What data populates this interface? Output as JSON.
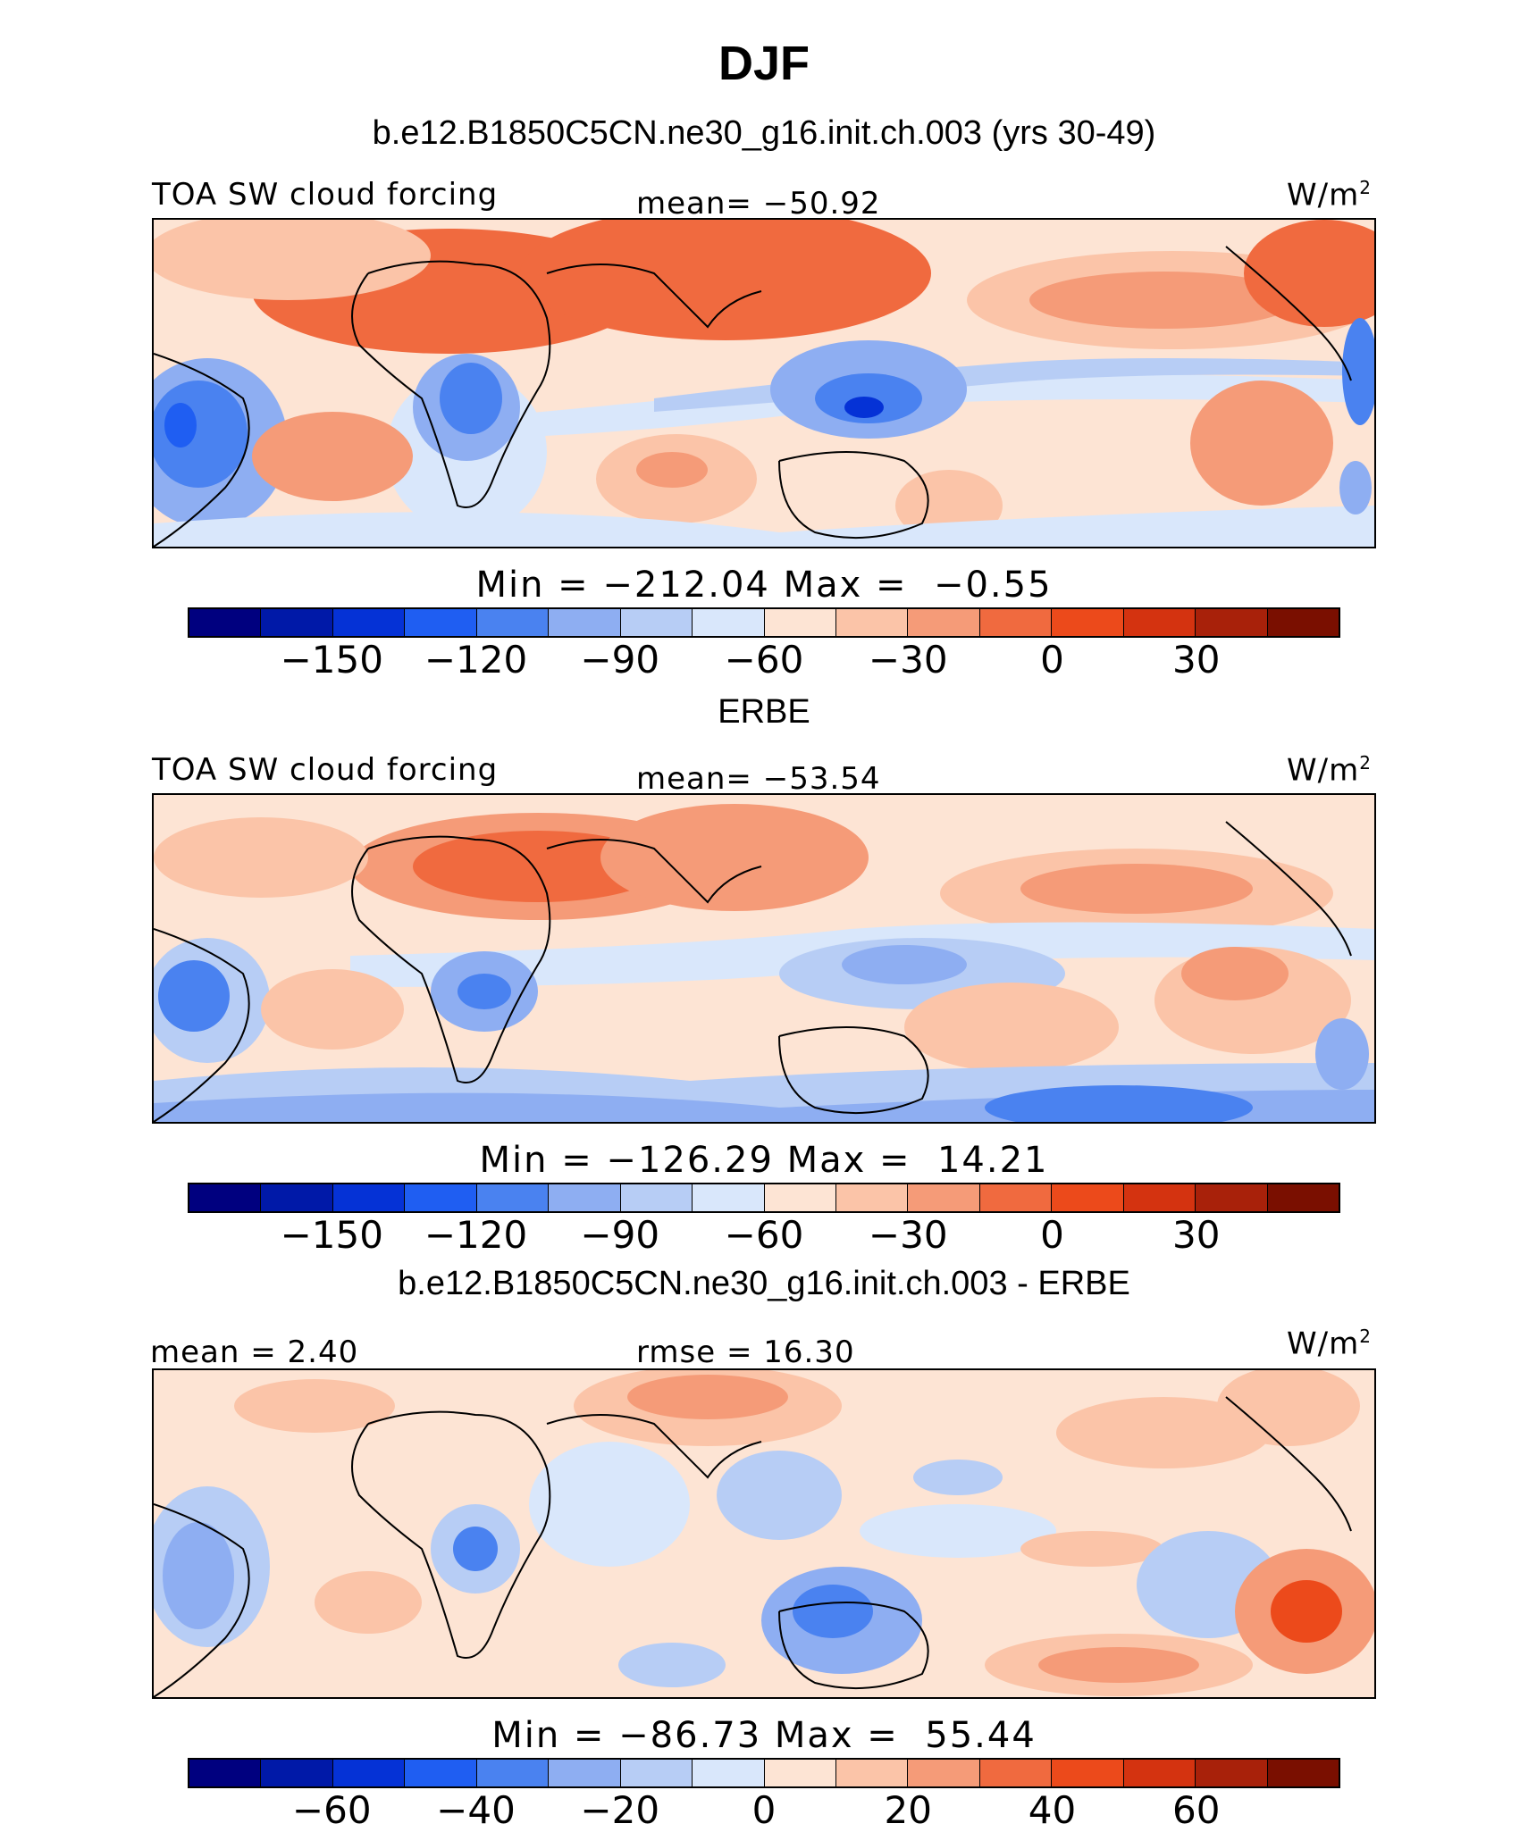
{
  "title": "DJF",
  "chart_data": [
    {
      "type": "heatmap",
      "title": "b.e12.B1850C5CN.ne30_g16.init.ch.003 (yrs 30-49)",
      "variable": "TOA SW cloud forcing",
      "units": "W/m",
      "units_sup": "2",
      "stat_left": "",
      "stat_center": "mean= −50.92",
      "mean": -50.92,
      "min": -212.04,
      "max": -0.55,
      "stats_line": "Min = −212.04 Max =  −0.55",
      "colorbar_levels": [
        -165,
        -150,
        -135,
        -120,
        -105,
        -90,
        -75,
        -60,
        -45,
        -30,
        -15,
        0,
        15,
        30,
        45
      ],
      "colorbar_ticks": [
        "−150",
        "−120",
        "−90",
        "−60",
        "−30",
        "0",
        "30"
      ]
    },
    {
      "type": "heatmap",
      "title": "ERBE",
      "variable": "TOA SW cloud forcing",
      "units": "W/m",
      "units_sup": "2",
      "stat_left": "",
      "stat_center": "mean= −53.54",
      "mean": -53.54,
      "min": -126.29,
      "max": 14.21,
      "stats_line": "Min = −126.29 Max =  14.21",
      "colorbar_levels": [
        -165,
        -150,
        -135,
        -120,
        -105,
        -90,
        -75,
        -60,
        -45,
        -30,
        -15,
        0,
        15,
        30,
        45
      ],
      "colorbar_ticks": [
        "−150",
        "−120",
        "−90",
        "−60",
        "−30",
        "0",
        "30"
      ]
    },
    {
      "type": "heatmap",
      "title": "b.e12.B1850C5CN.ne30_g16.init.ch.003 - ERBE",
      "variable": "",
      "units": "W/m",
      "units_sup": "2",
      "stat_left": "mean =   2.40",
      "stat_center": "rmse =  16.30",
      "mean": 2.4,
      "rmse": 16.3,
      "min": -86.73,
      "max": 55.44,
      "stats_line": "Min = −86.73 Max =  55.44",
      "colorbar_levels": [
        -70,
        -60,
        -50,
        -40,
        -30,
        -20,
        -10,
        0,
        10,
        20,
        30,
        40,
        50,
        60,
        70
      ],
      "colorbar_ticks": [
        "−60",
        "−40",
        "−20",
        "0",
        "20",
        "40",
        "60"
      ]
    }
  ],
  "colors": {
    "palette": [
      "#00007f",
      "#0019a8",
      "#0532d6",
      "#1f5ef2",
      "#4a82f0",
      "#8eaef2",
      "#b7cdf5",
      "#d9e7fb",
      "#fde4d4",
      "#fbc4a8",
      "#f59b78",
      "#f06a3f",
      "#ec4a1b",
      "#d43310",
      "#a8210a",
      "#7a0f00"
    ]
  }
}
